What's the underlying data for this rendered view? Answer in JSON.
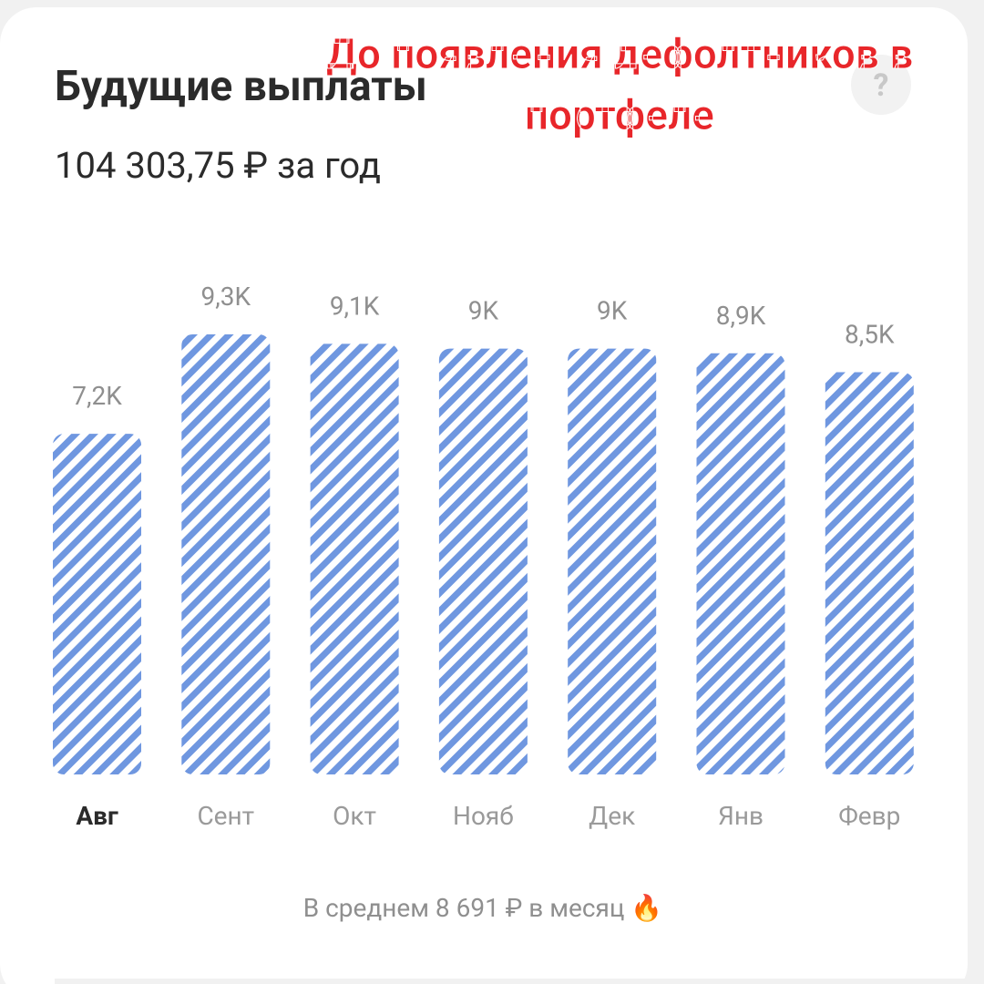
{
  "chart_data": {
    "type": "bar",
    "title": "Будущие выплаты",
    "subtitle": "104 303,75 ₽ за год",
    "annotation": [
      "До появления дефолтников в",
      "портфеле"
    ],
    "help_icon": "?",
    "footer": "В среднем 8 691 ₽ в месяц 🔥",
    "categories": [
      "Авг",
      "Сент",
      "Окт",
      "Нояб",
      "Дек",
      "Янв",
      "Февр"
    ],
    "values": [
      7.2,
      9.3,
      9.1,
      9,
      9,
      8.9,
      8.5
    ],
    "value_labels": [
      "7,2K",
      "9,3K",
      "9,1K",
      "9K",
      "9K",
      "8,9K",
      "8,5K"
    ],
    "selected": 0,
    "color": "#6f97e0"
  }
}
